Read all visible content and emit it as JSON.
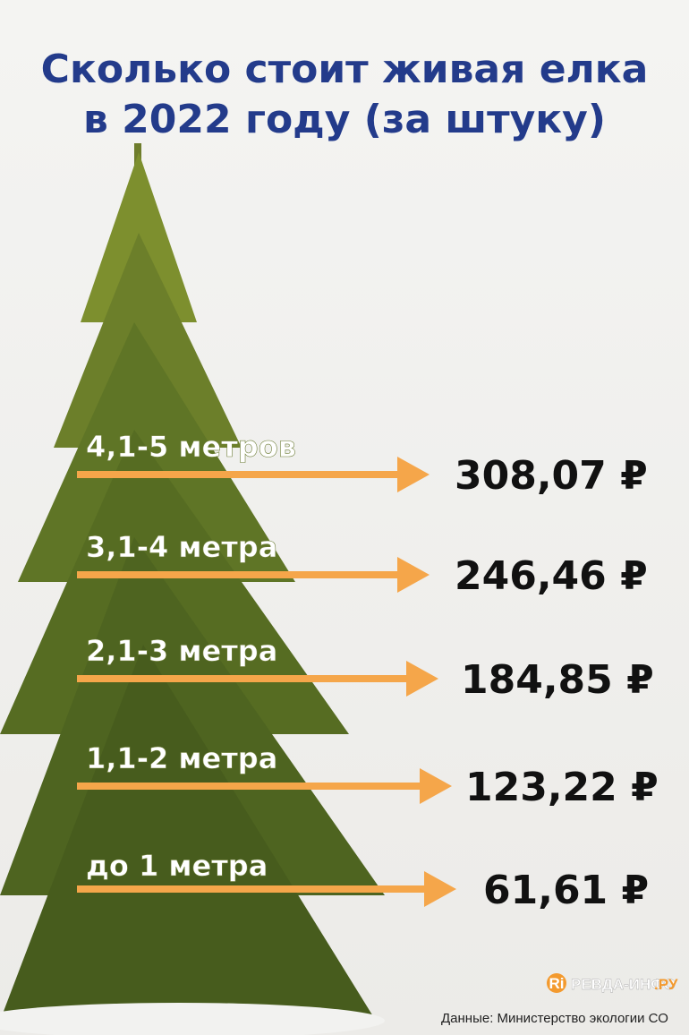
{
  "title": [
    "Сколько стоит живая елка",
    "в 2022 году (за штуку)"
  ],
  "items": [
    {
      "label": "4,1-5 метров",
      "price": "308,07 ₽"
    },
    {
      "label": "3,1-4 метра",
      "price": "246,46 ₽"
    },
    {
      "label": "2,1-3 метра",
      "price": "184,85 ₽"
    },
    {
      "label": "1,1-2 метра",
      "price": "123,22 ₽"
    },
    {
      "label": "до 1 метра",
      "price": "61,61 ₽"
    }
  ],
  "logo": {
    "icon": "Ri",
    "name": "РЕВДА-ИНФО",
    "suffix": ".РУ"
  },
  "source": "Данные: Министерство экологии  СО"
}
